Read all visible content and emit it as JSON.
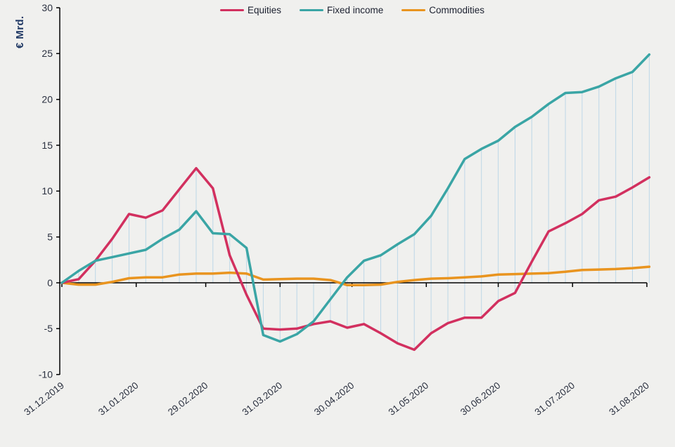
{
  "chart_data": {
    "type": "line",
    "title": "",
    "ylabel": "€ Mrd.",
    "ylim": [
      -10,
      30
    ],
    "yticks": [
      30,
      25,
      20,
      15,
      10,
      5,
      0,
      -5,
      -10
    ],
    "x_tick_labels": [
      "31.12.2019",
      "31.01.2020",
      "29.02.2020",
      "31.03.2020",
      "30.04.2020",
      "31.05.2020",
      "30.06.2020",
      "31.07.2020",
      "31.08.2020"
    ],
    "x_frequency": "weekly",
    "n_points": 36,
    "legend_position": "top-center",
    "grid": "light-blue vertical droplines at each weekly data point spanning from the zero axis to the Equities / Fixed income values",
    "series": [
      {
        "name": "Equities",
        "color": "#d2305f",
        "values": [
          0.0,
          0.4,
          2.4,
          4.8,
          7.5,
          7.1,
          7.9,
          10.2,
          12.5,
          10.3,
          3.0,
          -1.3,
          -5.0,
          -5.1,
          -5.0,
          -4.5,
          -4.2,
          -4.9,
          -4.5,
          -5.5,
          -6.6,
          -7.3,
          -5.5,
          -4.4,
          -3.8,
          -3.8,
          -2.0,
          -1.1,
          2.3,
          5.6,
          6.5,
          7.5,
          9.0,
          9.4,
          10.4,
          11.5
        ]
      },
      {
        "name": "Fixed income",
        "color": "#3aa5a5",
        "values": [
          0.0,
          1.3,
          2.4,
          2.8,
          3.2,
          3.6,
          4.8,
          5.8,
          7.8,
          5.4,
          5.3,
          3.8,
          -5.7,
          -6.4,
          -5.6,
          -4.2,
          -1.8,
          0.6,
          2.4,
          3.0,
          4.2,
          5.3,
          7.3,
          10.3,
          13.5,
          14.6,
          15.5,
          17.0,
          18.1,
          19.5,
          20.7,
          20.8,
          21.4,
          22.3,
          23.0,
          24.9
        ]
      },
      {
        "name": "Commodities",
        "color": "#e9941f",
        "values": [
          0.0,
          -0.2,
          -0.2,
          0.1,
          0.5,
          0.6,
          0.6,
          0.9,
          1.0,
          1.0,
          1.1,
          1.0,
          0.35,
          0.4,
          0.45,
          0.45,
          0.3,
          -0.25,
          -0.25,
          -0.2,
          0.1,
          0.3,
          0.45,
          0.5,
          0.6,
          0.7,
          0.9,
          0.95,
          1.0,
          1.05,
          1.2,
          1.4,
          1.45,
          1.5,
          1.6,
          1.75
        ]
      }
    ],
    "colors": {
      "background": "#f0f0ee",
      "axis": "#000000",
      "dropline": "#bdd7e7",
      "tick_text": "#2b3140",
      "unit_label": "#1f3864",
      "legend_text": "#1c2130"
    }
  }
}
